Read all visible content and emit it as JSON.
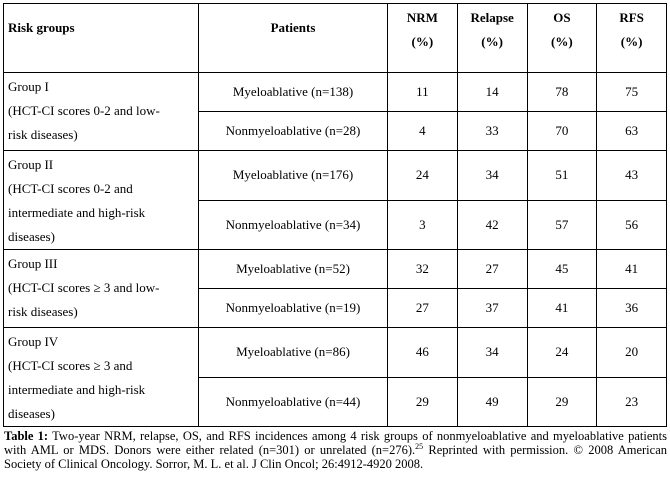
{
  "headers": {
    "risk_groups": "Risk groups",
    "patients": "Patients",
    "nrm": [
      "NRM",
      "(%)"
    ],
    "relapse": [
      "Relapse",
      "(%)"
    ],
    "os": [
      "OS",
      "(%)"
    ],
    "rfs": [
      "RFS",
      "(%)"
    ]
  },
  "groups": [
    {
      "lines": [
        "Group I",
        "(HCT-CI scores 0-2 and low-",
        "risk diseases)"
      ],
      "rows": [
        {
          "patients": "Myeloablative (n=138)",
          "nrm": "11",
          "relapse": "14",
          "os": "78",
          "rfs": "75"
        },
        {
          "patients": "Nonmyeloablative (n=28)",
          "nrm": "4",
          "relapse": "33",
          "os": "70",
          "rfs": "63"
        }
      ]
    },
    {
      "lines": [
        "Group II",
        "(HCT-CI scores 0-2 and",
        "intermediate and high-risk",
        "diseases)"
      ],
      "rows": [
        {
          "patients": "Myeloablative (n=176)",
          "nrm": "24",
          "relapse": "34",
          "os": "51",
          "rfs": "43"
        },
        {
          "patients": "Nonmyeloablative (n=34)",
          "nrm": "3",
          "relapse": "42",
          "os": "57",
          "rfs": "56"
        }
      ]
    },
    {
      "lines": [
        "Group III",
        "(HCT-CI scores ≥ 3 and low-",
        "risk diseases)"
      ],
      "rows": [
        {
          "patients": "Myeloablative (n=52)",
          "nrm": "32",
          "relapse": "27",
          "os": "45",
          "rfs": "41"
        },
        {
          "patients": "Nonmyeloablative (n=19)",
          "nrm": "27",
          "relapse": "37",
          "os": "41",
          "rfs": "36"
        }
      ]
    },
    {
      "lines": [
        "Group IV",
        "(HCT-CI scores ≥ 3 and",
        "intermediate and high-risk",
        "diseases)"
      ],
      "rows": [
        {
          "patients": "Myeloablative (n=86)",
          "nrm": "46",
          "relapse": "34",
          "os": "24",
          "rfs": "20"
        },
        {
          "patients": "Nonmyeloablative (n=44)",
          "nrm": "29",
          "relapse": "49",
          "os": "29",
          "rfs": "23"
        }
      ]
    }
  ],
  "caption": {
    "label": "Table 1:",
    "text": " Two-year NRM, relapse, OS, and RFS incidences among 4 risk groups of nonmyeloablative and myeloablative patients with AML or MDS. Donors were either related (n=301) or unrelated (n=276).",
    "ref": "25",
    "text2": " Reprinted with permission. © 2008 American Society of Clinical Oncology. Sorror, M. L. et al. J Clin Oncol; 26:4912-4920 2008."
  }
}
